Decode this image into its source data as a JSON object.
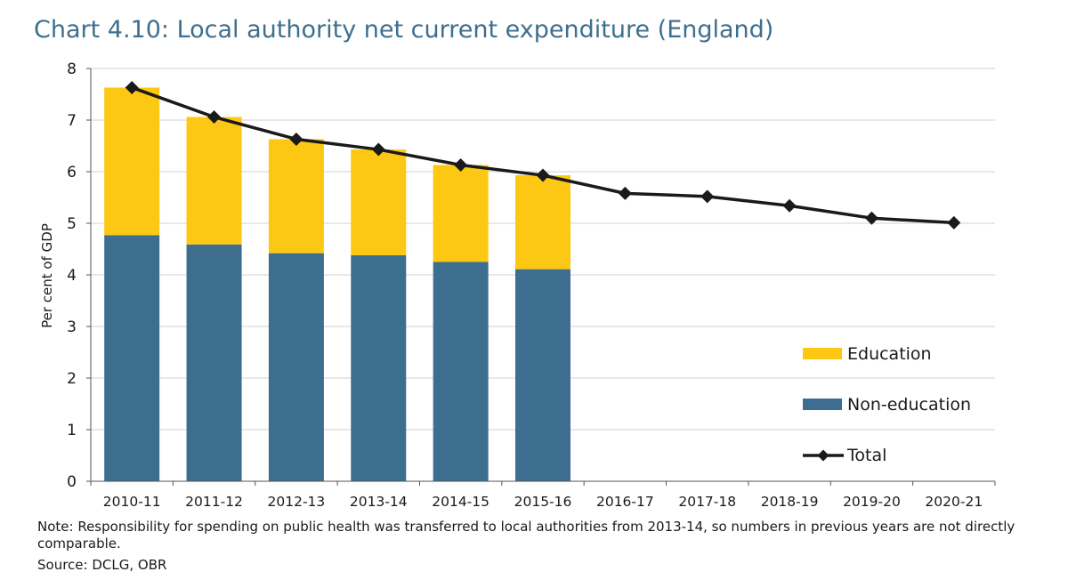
{
  "chart_data": {
    "type": "bar",
    "stacked": true,
    "title": "Chart 4.10: Local authority net current expenditure (England)",
    "ylabel": "Per cent of GDP",
    "xlabel": "",
    "ylim": [
      0,
      8
    ],
    "yticks": [
      "0",
      "1",
      "2",
      "3",
      "4",
      "5",
      "6",
      "7",
      "8"
    ],
    "categories": [
      "2010-11",
      "2011-12",
      "2012-13",
      "2013-14",
      "2014-15",
      "2015-16",
      "2016-17",
      "2017-18",
      "2018-19",
      "2019-20",
      "2020-21"
    ],
    "series": [
      {
        "name": "Non-education",
        "kind": "bar",
        "color": "#3d6e8f",
        "values": [
          4.77,
          4.59,
          4.42,
          4.38,
          4.25,
          4.11,
          null,
          null,
          null,
          null,
          null
        ]
      },
      {
        "name": "Education",
        "kind": "bar",
        "color": "#fcc813",
        "values": [
          2.86,
          2.47,
          2.21,
          2.05,
          1.88,
          1.82,
          null,
          null,
          null,
          null,
          null
        ]
      },
      {
        "name": "Total",
        "kind": "line",
        "color": "#1a1a1a",
        "values": [
          7.63,
          7.06,
          6.63,
          6.43,
          6.13,
          5.93,
          5.58,
          5.52,
          5.34,
          5.1,
          5.01
        ]
      }
    ],
    "legend": {
      "placement": "right",
      "entries": [
        {
          "label": "Education",
          "color": "#fcc813",
          "kind": "bar"
        },
        {
          "label": "Non-education",
          "color": "#3d6e8f",
          "kind": "bar"
        },
        {
          "label": "Total",
          "color": "#1a1a1a",
          "kind": "line"
        }
      ]
    },
    "grid": true,
    "note": "Note: Responsibility for spending on public health was transferred to local authorities from 2013-14, so numbers in previous years are not directly comparable.",
    "source": "Source: DCLG, OBR"
  }
}
